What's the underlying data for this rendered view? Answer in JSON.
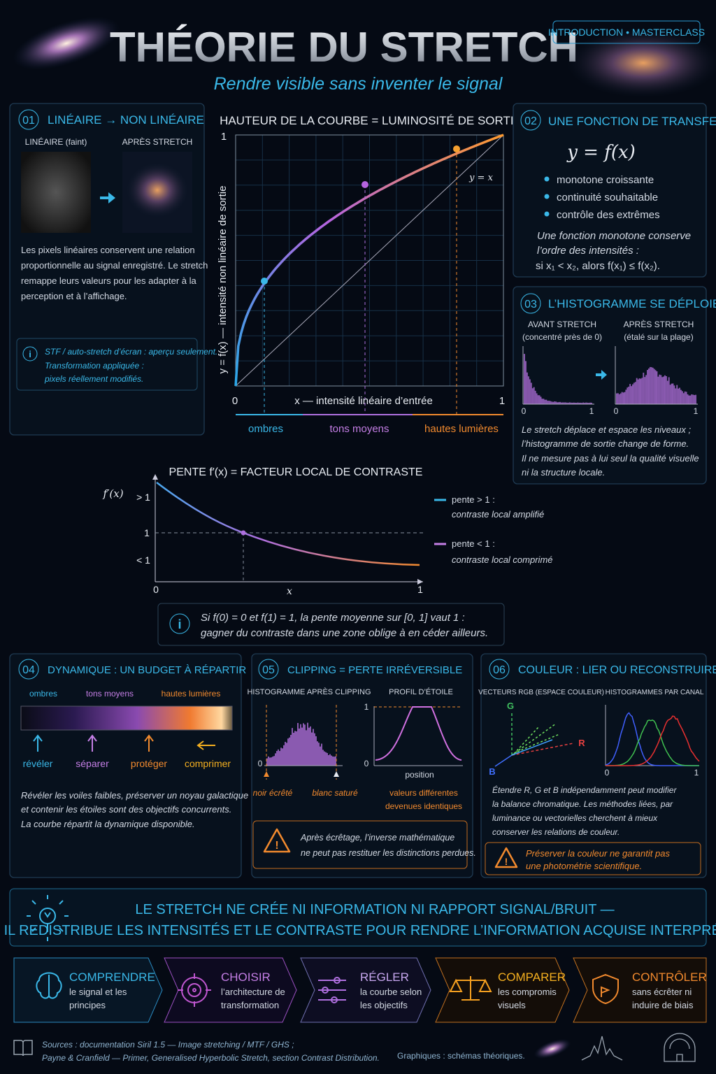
{
  "header": {
    "title": "THÉORIE DU STRETCH",
    "subtitle": "Rendre visible sans inventer le signal",
    "tag": "INTRODUCTION • MASTERCLASS"
  },
  "panel1": {
    "num": "01",
    "title": "LINÉAIRE → NON LINÉAIRE",
    "label_linear": "LINÉAIRE (faint)",
    "label_after": "APRÈS STRETCH",
    "text": [
      "Les pixels linéaires conservent une relation",
      "proportionnelle au signal enregistré. Le stretch",
      "remappe leurs valeurs pour les adapter à la",
      "perception et à l’affichage."
    ],
    "note": [
      "STF / auto-stretch d’écran : aperçu seulement.",
      "Transformation appliquée :",
      "pixels réellement modifiés."
    ]
  },
  "curve": {
    "title": "HAUTEUR DE LA COURBE = LUMINOSITÉ DE SORTIE",
    "y_label": "y = f(x) — intensité non linéaire de sortie",
    "x_label": "x — intensité linéaire d’entrée",
    "x0": "0",
    "x1": "1",
    "y1": "1",
    "identity": "y = x",
    "zones": [
      "ombres",
      "tons moyens",
      "hautes lumières"
    ]
  },
  "panel2": {
    "num": "02",
    "title": "UNE FONCTION DE TRANSFERT",
    "formula": "y = f(x)",
    "bullets": [
      "monotone croissante",
      "continuité souhaitable",
      "contrôle des extrêmes"
    ],
    "text": [
      "Une fonction monotone conserve",
      "l’ordre des intensités :",
      "si x₁ < x₂, alors f(x₁) ≤ f(x₂)."
    ]
  },
  "panel3": {
    "num": "03",
    "title": "L’HISTOGRAMME SE DÉPLOIE",
    "before": "AVANT STRETCH",
    "before_sub": "(concentré près de 0)",
    "after": "APRÈS STRETCH",
    "after_sub": "(étalé sur la plage)",
    "ticks": [
      "0",
      "1",
      "0",
      "1"
    ],
    "text": [
      "Le stretch déplace et espace les niveaux ;",
      "l’histogramme de sortie change de forme.",
      "Il ne mesure pas à lui seul la qualité visuelle",
      "ni la structure locale."
    ]
  },
  "slope": {
    "title": "PENTE f′(x) = FACTEUR LOCAL DE CONTRASTE",
    "y_label": "f′(x)",
    "y_ticks": [
      "> 1",
      "1",
      "< 1"
    ],
    "x_ticks": [
      "0",
      "x",
      "1"
    ],
    "legend": [
      {
        "name": "pente > 1 :",
        "desc": "contraste local amplifié"
      },
      {
        "name": "pente < 1 :",
        "desc": "contraste local comprimé"
      }
    ],
    "info": [
      "Si f(0) = 0 et f(1) = 1, la pente moyenne sur [0, 1] vaut 1 :",
      "gagner du contraste dans une zone oblige à en céder ailleurs."
    ]
  },
  "panel4": {
    "num": "04",
    "title": "DYNAMIQUE : UN BUDGET À RÉPARTIR",
    "zones": [
      "ombres",
      "tons moyens",
      "hautes lumières"
    ],
    "actions": [
      "révéler",
      "séparer",
      "protéger",
      "comprimer"
    ],
    "text": [
      "Révéler les voiles faibles, préserver un noyau galactique",
      "et contenir les étoiles sont des objectifs concurrents.",
      "La courbe répartit la dynamique disponible."
    ]
  },
  "panel5": {
    "num": "05",
    "title": "CLIPPING = PERTE IRRÉVERSIBLE",
    "hist_label": "HISTOGRAMME APRÈS CLIPPING",
    "profile_label": "PROFIL D’ÉTOILE",
    "hist_zero": "0",
    "profile_one": "1",
    "profile_zero": "0",
    "position": "position",
    "black": "noir écrêté",
    "white": "blanc saturé",
    "values": [
      "valeurs différentes",
      "devenues identiques"
    ],
    "warning": [
      "Après écrêtage, l’inverse mathématique",
      "ne peut pas restituer les distinctions perdues."
    ]
  },
  "panel6": {
    "num": "06",
    "title": "COULEUR : LIER OU RECONSTRUIRE",
    "vectors_label": "VECTEURS RGB (ESPACE COULEUR)",
    "hist_label": "HISTOGRAMMES PAR CANAL",
    "axes": [
      "G",
      "R",
      "B"
    ],
    "ticks": [
      "0",
      "1"
    ],
    "text": [
      "Étendre R, G et B indépendamment peut modifier",
      "la balance chromatique. Les méthodes liées, par",
      "luminance ou vectorielles cherchent à mieux",
      "conserver les relations de couleur."
    ],
    "warning": [
      "Préserver la couleur ne garantit pas",
      "une photométrie scientifique."
    ]
  },
  "banner": [
    "LE STRETCH NE CRÉE NI INFORMATION NI RAPPORT SIGNAL/BRUIT —",
    "IL REDISTRIBUE LES INTENSITÉS ET LE CONTRASTE POUR RENDRE L’INFORMATION ACQUISE INTERPRÉTABLE."
  ],
  "steps": [
    {
      "title": "COMPRENDRE",
      "desc": [
        "le signal et les",
        "principes"
      ]
    },
    {
      "title": "CHOISIR",
      "desc": [
        "l’architecture de",
        "transformation"
      ]
    },
    {
      "title": "RÉGLER",
      "desc": [
        "la courbe selon",
        "les objectifs"
      ]
    },
    {
      "title": "COMPARER",
      "desc": [
        "les compromis",
        "visuels"
      ]
    },
    {
      "title": "CONTRÔLER",
      "desc": [
        "sans écrêter ni",
        "induire de biais"
      ]
    }
  ],
  "footer": {
    "sources": [
      "Sources : documentation Siril 1.5 — Image stretching / MTF / GHS ;",
      "Payne & Cranfield — Primer, Generalised Hyperbolic Stretch, section Contrast Distribution."
    ],
    "graphics": "Graphiques : schémas théoriques."
  }
}
